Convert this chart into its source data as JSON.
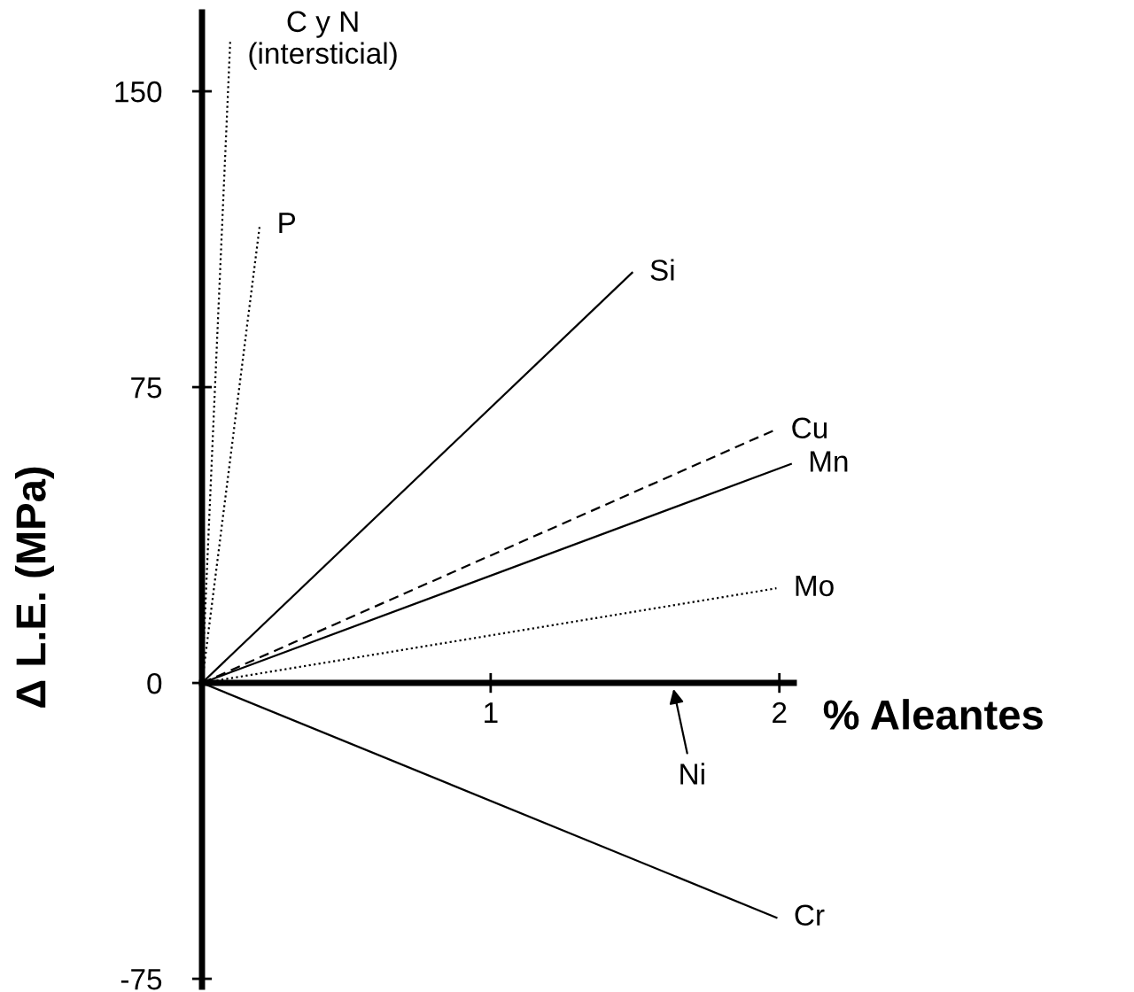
{
  "chart_data": {
    "type": "line",
    "xlabel": "% Aleantes",
    "ylabel": "Δ L.E. (MPa)",
    "xlim": [
      0,
      2.05
    ],
    "xticks": [
      1,
      2
    ],
    "ylim": [
      -77,
      170
    ],
    "yticks": [
      -75,
      0,
      75,
      150
    ],
    "grid": false,
    "legend": false,
    "marker": "none",
    "series": [
      {
        "name": "C y N\n(intersticial)",
        "color": "#000000",
        "line_style": "dotted",
        "x": [
          0,
          0.098
        ],
        "values": [
          0,
          163
        ]
      },
      {
        "name": "P",
        "color": "#000000",
        "line_style": "dotted",
        "x": [
          0,
          0.2
        ],
        "values": [
          0,
          116
        ]
      },
      {
        "name": "Si",
        "color": "#000000",
        "line_style": "solid",
        "x": [
          0,
          1.49
        ],
        "values": [
          0,
          104
        ]
      },
      {
        "name": "Cu",
        "color": "#000000",
        "line_style": "dashed",
        "x": [
          0,
          1.98
        ],
        "values": [
          0,
          64
        ]
      },
      {
        "name": "Mn",
        "color": "#000000",
        "line_style": "solid",
        "x": [
          0,
          2.04
        ],
        "values": [
          0,
          55.5
        ]
      },
      {
        "name": "Mo",
        "color": "#000000",
        "line_style": "dotted",
        "x": [
          0,
          1.99
        ],
        "values": [
          0,
          24
        ]
      },
      {
        "name": "Cr",
        "color": "#000000",
        "line_style": "solid",
        "x": [
          0,
          1.99
        ],
        "values": [
          0,
          -59.5
        ]
      }
    ],
    "annotations": [
      "Ni"
    ]
  }
}
